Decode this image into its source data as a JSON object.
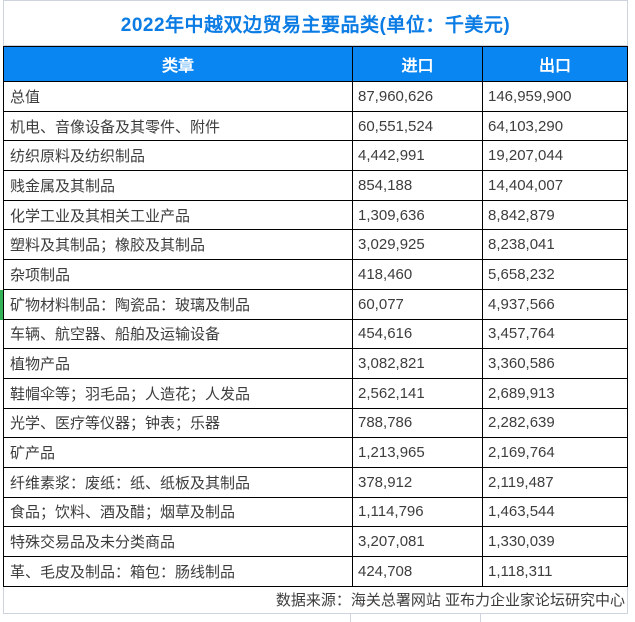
{
  "title": "2022年中越双边贸易主要品类(单位：千美元)",
  "source_note": "数据来源：海关总署网站 亚布力企业家论坛研究中心",
  "colors": {
    "title_blue": "#0b7ce4",
    "header_bg": "#0a86f3",
    "header_text": "#ffffff",
    "body_text": "#3d3d3d",
    "grid_black": "#000000",
    "grid_light": "#cdd4dd",
    "marker_green": "#34b257"
  },
  "selection_marker": {
    "row_index": 7
  },
  "chart_data": {
    "type": "table",
    "title": "2022年中越双边贸易主要品类(单位：千美元)",
    "columns": [
      "类章",
      "进口",
      "出口"
    ],
    "rows": [
      [
        "总值",
        "87,960,626",
        "146,959,900"
      ],
      [
        "机电、音像设备及其零件、附件",
        "60,551,524",
        "64,103,290"
      ],
      [
        "纺织原料及纺织制品",
        "4,442,991",
        "19,207,044"
      ],
      [
        "贱金属及其制品",
        "854,188",
        "14,404,007"
      ],
      [
        "化学工业及其相关工业产品",
        "1,309,636",
        "8,842,879"
      ],
      [
        "塑料及其制品；橡胶及其制品",
        "3,029,925",
        "8,238,041"
      ],
      [
        "杂项制品",
        "418,460",
        "5,658,232"
      ],
      [
        "矿物材料制品：陶瓷品：玻璃及制品",
        "60,077",
        "4,937,566"
      ],
      [
        "车辆、航空器、船舶及运输设备",
        "454,616",
        "3,457,764"
      ],
      [
        "植物产品",
        "3,082,821",
        "3,360,586"
      ],
      [
        "鞋帽伞等；羽毛品；人造花；人发品",
        "2,562,141",
        "2,689,913"
      ],
      [
        "光学、医疗等仪器；钟表；乐器",
        "788,786",
        "2,282,639"
      ],
      [
        "矿产品",
        "1,213,965",
        "2,169,764"
      ],
      [
        "纤维素浆：废纸：纸、纸板及其制品",
        "378,912",
        "2,119,487"
      ],
      [
        "食品；饮料、酒及醋；烟草及制品",
        "1,114,796",
        "1,463,544"
      ],
      [
        "特殊交易品及未分类商品",
        "3,207,081",
        "1,330,039"
      ],
      [
        "革、毛皮及制品：箱包：肠线制品",
        "424,708",
        "1,118,311"
      ]
    ]
  }
}
